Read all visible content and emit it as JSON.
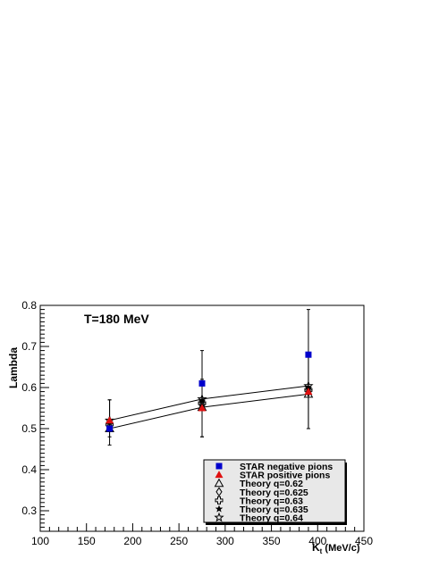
{
  "chart_data": {
    "type": "scatter",
    "title": "",
    "xlabel_main": "K",
    "xlabel_sub": "t",
    "xlabel_unit": " (MeV/c)",
    "ylabel": "Lambda",
    "xlim": [
      100,
      450
    ],
    "ylim": [
      0.25,
      0.8
    ],
    "x_ticks": [
      100,
      150,
      200,
      250,
      300,
      350,
      400,
      450
    ],
    "y_ticks": [
      0.3,
      0.4,
      0.5,
      0.6,
      0.7,
      0.8
    ],
    "x_tick_labels": [
      "100",
      "150",
      "200",
      "250",
      "300",
      "350",
      "400",
      "450"
    ],
    "y_tick_labels": [
      "0.3",
      "0.4",
      "0.5",
      "0.6",
      "0.7",
      "0.8"
    ],
    "annotation": "T=180 MeV",
    "grid": false,
    "legend_position": "bottom-right",
    "series": [
      {
        "name": "STAR negative pions",
        "marker": "square",
        "color": "#0000cc",
        "x": [
          175,
          275,
          390
        ],
        "y": [
          0.5,
          0.61,
          0.68
        ],
        "yerr_low": [
          0.04,
          0.13,
          0.18
        ],
        "yerr_high": [
          0.07,
          0.08,
          0.11
        ]
      },
      {
        "name": "STAR positive pions",
        "marker": "triangle",
        "color": "#e01010",
        "x": [
          175,
          275,
          390
        ],
        "y": [
          0.52,
          0.55,
          0.59
        ],
        "yerr_low": [
          0.04,
          0.07,
          0.09
        ],
        "yerr_high": [
          0.05,
          0.07,
          0.09
        ]
      },
      {
        "name": "Theory q=0.62",
        "marker": "open-triangle",
        "color": "#000000",
        "x": [
          175,
          275,
          390
        ],
        "y": [
          0.5,
          0.552,
          0.584
        ],
        "line": true
      },
      {
        "name": "Theory q=0.625",
        "marker": "open-diamond",
        "color": "#000000",
        "x": [
          175,
          275,
          390
        ],
        "y": [
          0.505,
          0.557,
          0.589
        ]
      },
      {
        "name": "Theory q=0.63",
        "marker": "open-cross",
        "color": "#000000",
        "x": [
          175,
          275,
          390
        ],
        "y": [
          0.51,
          0.562,
          0.594
        ]
      },
      {
        "name": "Theory q=0.635",
        "marker": "star",
        "color": "#000000",
        "x": [
          175,
          275,
          390
        ],
        "y": [
          0.515,
          0.567,
          0.599
        ]
      },
      {
        "name": "Theory q=0.64",
        "marker": "open-star",
        "color": "#000000",
        "x": [
          175,
          275,
          390
        ],
        "y": [
          0.52,
          0.572,
          0.604
        ],
        "line": true
      }
    ]
  }
}
